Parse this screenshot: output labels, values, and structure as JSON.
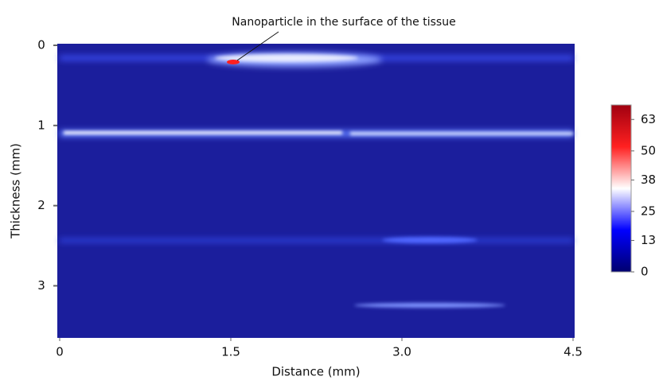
{
  "chart_data": {
    "type": "heatmap",
    "annotation": "Nanoparticle in the surface of the tissue",
    "xlabel": "Distance (mm)",
    "ylabel": "Thickness (mm)",
    "xlim": [
      0,
      4.5
    ],
    "xticks": [
      0,
      1.5,
      {
        "value": 3,
        "label": "3.0"
      },
      4.5
    ],
    "ylim": [
      0,
      3.65
    ],
    "yticks": [
      0,
      1,
      2,
      3
    ],
    "y_inverted": true,
    "colorbar_lim": [
      0,
      69
    ],
    "colorbar_ticks": [
      0,
      13,
      25,
      38,
      50,
      63
    ],
    "colormap": [
      "#00006e",
      "#0000ff",
      "#ffffff",
      "#ff2020",
      "#a00010"
    ]
  }
}
